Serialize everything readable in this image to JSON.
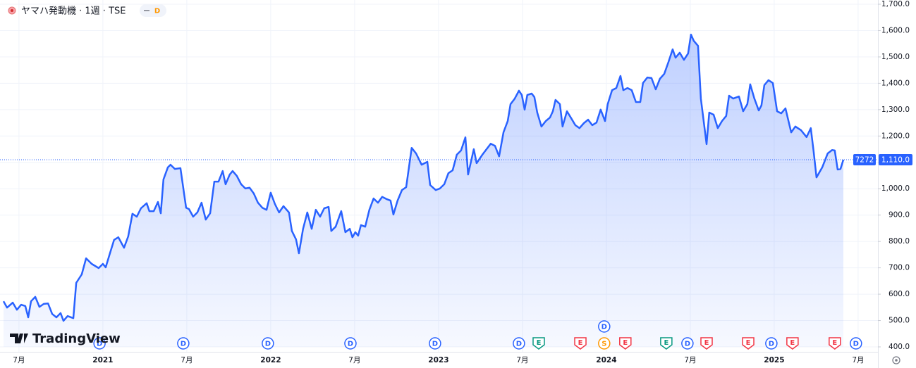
{
  "chart_data": {
    "type": "area",
    "title": "ヤマハ発動機 · 1週 · TSE",
    "interval_badge": "D",
    "color": "#2962ff",
    "grid": true,
    "x": [
      2020.408,
      2020.429,
      2020.463,
      2020.488,
      2020.513,
      2020.538,
      2020.555,
      2020.572,
      2020.597,
      2020.622,
      2020.648,
      2020.673,
      2020.698,
      2020.723,
      2020.748,
      2020.765,
      2020.79,
      2020.824,
      2020.841,
      2020.874,
      2020.9,
      2020.933,
      2020.975,
      2021.0,
      2021.017,
      2021.042,
      2021.067,
      2021.092,
      2021.126,
      2021.151,
      2021.176,
      2021.202,
      2021.227,
      2021.261,
      2021.277,
      2021.303,
      2021.328,
      2021.345,
      2021.361,
      2021.387,
      2021.403,
      2021.429,
      2021.462,
      2021.496,
      2021.513,
      2021.538,
      2021.563,
      2021.588,
      2021.613,
      2021.639,
      2021.664,
      2021.689,
      2021.714,
      2021.731,
      2021.756,
      2021.773,
      2021.798,
      2021.824,
      2021.849,
      2021.874,
      2021.899,
      2021.924,
      2021.95,
      2021.975,
      2022.0,
      2022.025,
      2022.05,
      2022.076,
      2022.109,
      2022.126,
      2022.151,
      2022.168,
      2022.193,
      2022.218,
      2022.244,
      2022.269,
      2022.294,
      2022.319,
      2022.345,
      2022.361,
      2022.387,
      2022.42,
      2022.445,
      2022.471,
      2022.487,
      2022.504,
      2022.521,
      2022.538,
      2022.563,
      2022.588,
      2022.613,
      2022.639,
      2022.664,
      2022.689,
      2022.714,
      2022.731,
      2022.756,
      2022.782,
      2022.807,
      2022.84,
      2022.866,
      2022.899,
      2022.933,
      2022.95,
      2022.983,
      2023.008,
      2023.034,
      2023.059,
      2023.084,
      2023.109,
      2023.134,
      2023.16,
      2023.176,
      2023.21,
      2023.227,
      2023.261,
      2023.286,
      2023.311,
      2023.336,
      2023.361,
      2023.387,
      2023.412,
      2023.429,
      2023.454,
      2023.479,
      2023.496,
      2023.513,
      2023.529,
      2023.555,
      2023.571,
      2023.588,
      2023.613,
      2023.639,
      2023.664,
      2023.681,
      2023.697,
      2023.723,
      2023.739,
      2023.765,
      2023.79,
      2023.815,
      2023.84,
      2023.866,
      2023.891,
      2023.916,
      2023.941,
      2023.966,
      2023.992,
      2024.008,
      2024.034,
      2024.059,
      2024.084,
      2024.101,
      2024.126,
      2024.151,
      2024.176,
      2024.202,
      2024.218,
      2024.244,
      2024.269,
      2024.294,
      2024.319,
      2024.345,
      2024.37,
      2024.395,
      2024.412,
      2024.437,
      2024.462,
      2024.487,
      2024.504,
      2024.521,
      2024.546,
      2024.563,
      2024.597,
      2024.613,
      2024.639,
      2024.664,
      2024.689,
      2024.714,
      2024.731,
      2024.756,
      2024.79,
      2024.815,
      2024.84,
      2024.857,
      2024.882,
      2024.908,
      2024.924,
      2024.941,
      2024.966,
      2024.992,
      2025.017,
      2025.042,
      2025.067,
      2025.101,
      2025.126,
      2025.16,
      2025.193,
      2025.218,
      2025.235,
      2025.252,
      2025.286,
      2025.319,
      2025.345,
      2025.361,
      2025.378,
      2025.395,
      2025.412
    ],
    "values": [
      573,
      549,
      568,
      541,
      560,
      555,
      512,
      573,
      590,
      552,
      563,
      565,
      525,
      512,
      528,
      499,
      517,
      509,
      643,
      675,
      736,
      715,
      699,
      715,
      702,
      755,
      806,
      816,
      776,
      819,
      905,
      894,
      926,
      945,
      915,
      915,
      950,
      907,
      1035,
      1081,
      1091,
      1075,
      1078,
      928,
      923,
      894,
      910,
      947,
      883,
      907,
      1027,
      1027,
      1067,
      1017,
      1054,
      1067,
      1049,
      1017,
      1001,
      1004,
      982,
      947,
      928,
      920,
      985,
      942,
      910,
      934,
      910,
      840,
      808,
      755,
      848,
      910,
      848,
      920,
      894,
      926,
      931,
      840,
      856,
      915,
      835,
      848,
      816,
      835,
      822,
      862,
      856,
      920,
      963,
      947,
      969,
      961,
      955,
      902,
      955,
      995,
      1006,
      1155,
      1134,
      1091,
      1102,
      1014,
      995,
      1001,
      1017,
      1059,
      1070,
      1129,
      1145,
      1195,
      1054,
      1150,
      1097,
      1129,
      1150,
      1171,
      1163,
      1123,
      1214,
      1257,
      1321,
      1342,
      1372,
      1356,
      1300,
      1356,
      1361,
      1348,
      1289,
      1236,
      1257,
      1270,
      1294,
      1337,
      1321,
      1236,
      1294,
      1268,
      1241,
      1230,
      1249,
      1262,
      1241,
      1251,
      1300,
      1257,
      1321,
      1374,
      1382,
      1428,
      1374,
      1382,
      1374,
      1329,
      1329,
      1401,
      1422,
      1420,
      1377,
      1417,
      1436,
      1481,
      1529,
      1497,
      1516,
      1489,
      1513,
      1585,
      1561,
      1542,
      1342,
      1169,
      1289,
      1281,
      1230,
      1257,
      1276,
      1353,
      1342,
      1350,
      1294,
      1321,
      1396,
      1342,
      1297,
      1316,
      1393,
      1412,
      1401,
      1294,
      1286,
      1305,
      1214,
      1236,
      1222,
      1196,
      1230,
      1142,
      1043,
      1081,
      1134,
      1147,
      1145,
      1073,
      1075,
      1110
    ],
    "xlim": [
      2020.387,
      2025.618
    ],
    "xticks": [
      {
        "value": 2020.5,
        "label": "7月"
      },
      2021,
      {
        "value": 2021.5,
        "label": "7月"
      },
      2022,
      {
        "value": 2022.5,
        "label": "7月"
      },
      2023,
      {
        "value": 2023.5,
        "label": "7月"
      },
      2024,
      {
        "value": 2024.5,
        "label": "7月"
      },
      2025,
      {
        "value": 2025.5,
        "label": "7月"
      }
    ],
    "ylim": [
      400,
      1700
    ],
    "yticks": [
      {
        "value": 400,
        "label": "400.0"
      },
      {
        "value": 500,
        "label": "500.0"
      },
      {
        "value": 600,
        "label": "600.0"
      },
      {
        "value": 700,
        "label": "700.0"
      },
      {
        "value": 800,
        "label": "800.0"
      },
      {
        "value": 900,
        "label": "900.0"
      },
      {
        "value": 1000,
        "label": "1,000.0"
      },
      {
        "value": 1100,
        "label": "1,100.0"
      },
      {
        "value": 1200,
        "label": "1,200.0"
      },
      {
        "value": 1300,
        "label": "1,300.0"
      },
      {
        "value": 1400,
        "label": "1,400.0"
      },
      {
        "value": 1500,
        "label": "1,500.0"
      },
      {
        "value": 1600,
        "label": "1,600.0"
      },
      {
        "value": 1700,
        "label": "1,700.0"
      }
    ],
    "last_price": {
      "symbol": "7272",
      "value": 1110,
      "label": "1,110.0"
    },
    "events": [
      {
        "label": "D",
        "x": 2020.98,
        "color": "#2962ff"
      },
      {
        "label": "D",
        "x": 2021.479,
        "color": "#2962ff"
      },
      {
        "label": "D",
        "x": 2021.983,
        "color": "#2962ff"
      },
      {
        "label": "D",
        "x": 2022.475,
        "color": "#2962ff"
      },
      {
        "label": "D",
        "x": 2022.979,
        "color": "#2962ff"
      },
      {
        "label": "D",
        "x": 2023.479,
        "color": "#2962ff"
      },
      {
        "label": "E",
        "x": 2023.597,
        "color": "#089981"
      },
      {
        "label": "E",
        "x": 2023.845,
        "color": "#f23645"
      },
      {
        "label": "S",
        "x": 2023.987,
        "color": "#ff9800"
      },
      {
        "label": "D",
        "x": 2023.987,
        "color": "#2962ff"
      },
      {
        "label": "E",
        "x": 2024.113,
        "color": "#f23645"
      },
      {
        "label": "E",
        "x": 2024.357,
        "color": "#089981"
      },
      {
        "label": "D",
        "x": 2024.483,
        "color": "#2962ff"
      },
      {
        "label": "E",
        "x": 2024.597,
        "color": "#f23645"
      },
      {
        "label": "E",
        "x": 2024.845,
        "color": "#f23645"
      },
      {
        "label": "D",
        "x": 2024.983,
        "color": "#2962ff"
      },
      {
        "label": "E",
        "x": 2025.109,
        "color": "#f23645"
      },
      {
        "label": "E",
        "x": 2025.361,
        "color": "#f23645"
      },
      {
        "label": "D",
        "x": 2025.487,
        "color": "#2962ff"
      }
    ],
    "watermark": "TradingView"
  }
}
